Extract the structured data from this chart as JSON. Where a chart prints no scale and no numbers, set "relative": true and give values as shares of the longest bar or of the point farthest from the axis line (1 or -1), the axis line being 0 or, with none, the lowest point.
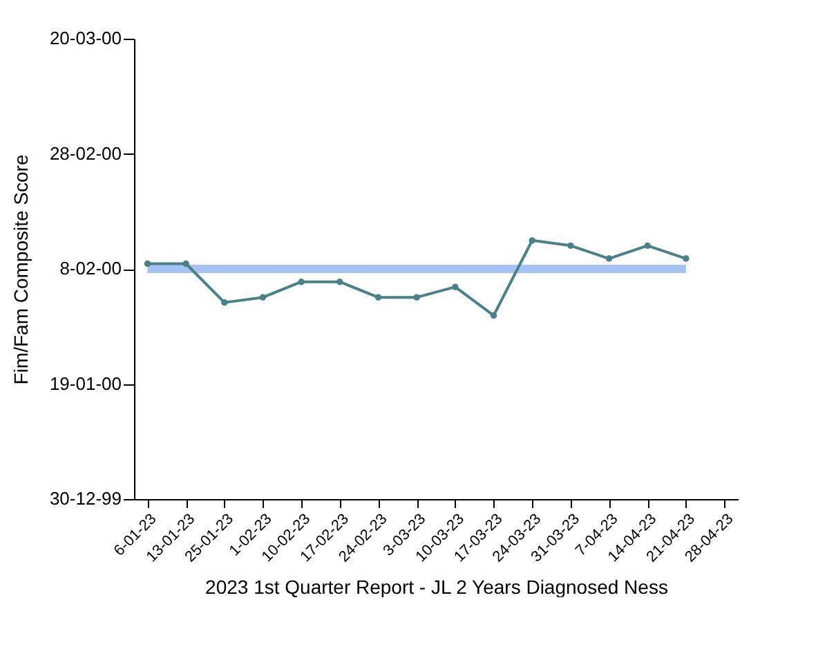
{
  "chart_data": {
    "type": "line",
    "relative": true,
    "xlabel": "2023 1st Quarter Report - JL 2 Years Diagnosed Ness",
    "ylabel": "Fim/Fam Composite Score",
    "annotations": [
      "30-12-99",
      "19-01-00",
      "8-02-00",
      "28-02-00",
      "20-03-00"
    ],
    "categories": [
      "6-01-23",
      "13-01-23",
      "25-01-23",
      "1-02-23",
      "10-02-23",
      "17-02-23",
      "24-02-23",
      "3-03-23",
      "10-03-23",
      "17-03-23",
      "24-03-23",
      "31-03-23",
      "7-04-23",
      "14-04-23",
      "21-04-23",
      "28-04-23"
    ],
    "series": [
      {
        "color": "#a4c2f4",
        "marker": "none",
        "values": [
          0.89,
          0.89,
          0.89,
          0.89,
          0.89,
          0.89,
          0.89,
          0.89,
          0.89,
          0.89,
          0.89,
          0.89,
          0.89,
          0.89,
          0.89,
          null
        ]
      },
      {
        "color": "#4a8088",
        "marker": "circle",
        "values": [
          0.91,
          0.91,
          0.76,
          0.78,
          0.84,
          0.84,
          0.78,
          0.78,
          0.82,
          0.71,
          1,
          0.98,
          0.93,
          0.98,
          0.93,
          null
        ]
      }
    ],
    "grid": false
  }
}
